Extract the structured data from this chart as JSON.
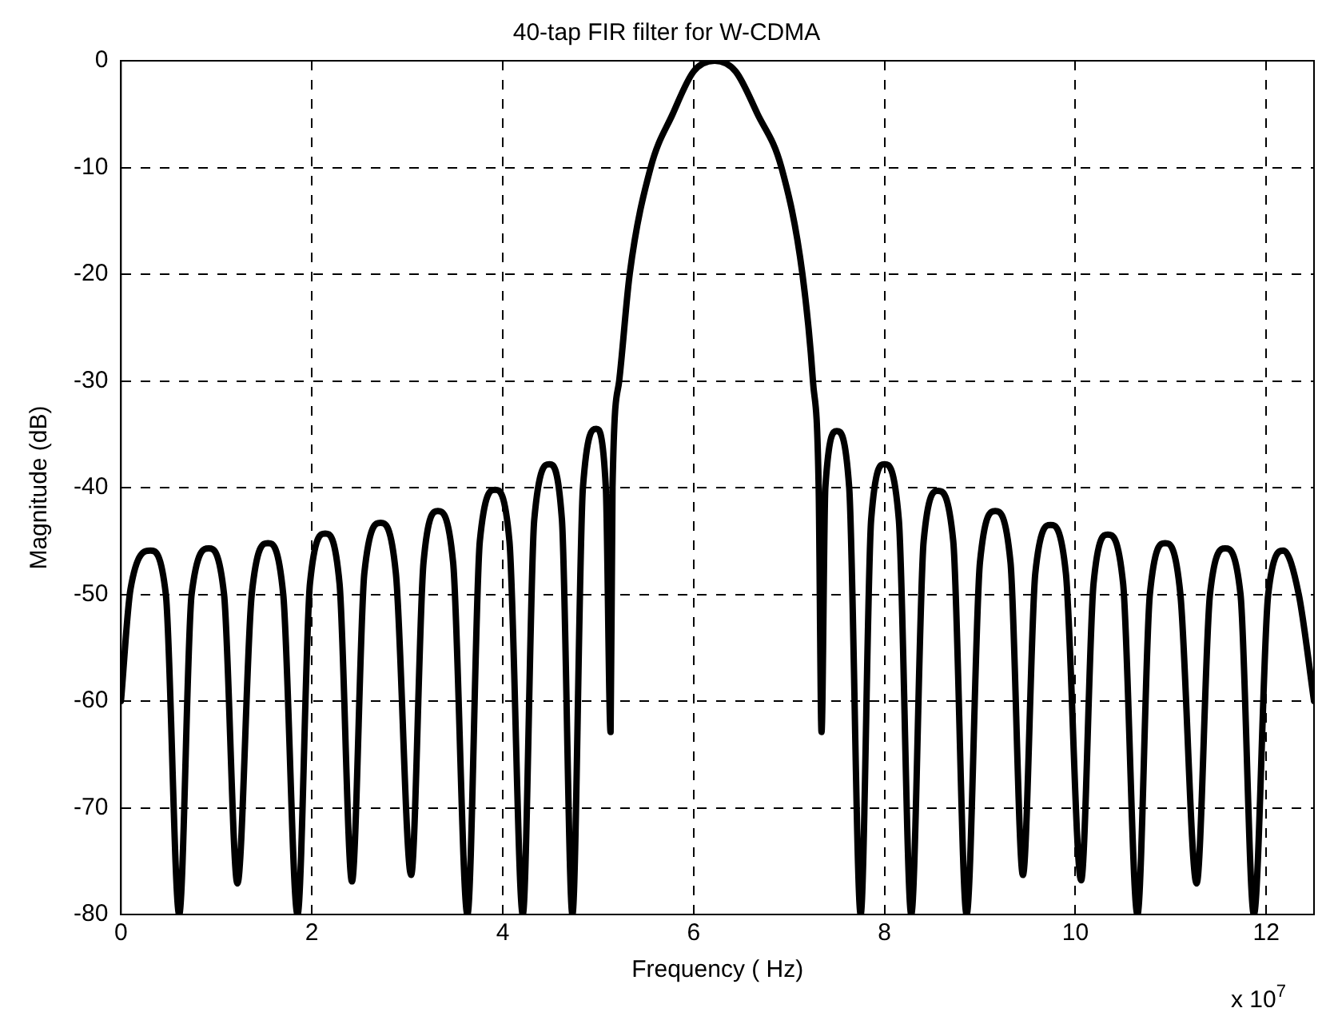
{
  "chart_data": {
    "type": "line",
    "title": "40-tap FIR filter for W-CDMA",
    "xlabel": "Frequency ( Hz)",
    "ylabel": "Magnitude (dB)",
    "annotations": [
      "x 10$^{7}$"
    ],
    "x": [
      0,
      0.1,
      0.31,
      0.47,
      0.61,
      0.74,
      0.92,
      1.08,
      1.22,
      1.37,
      1.54,
      1.7,
      1.85,
      1.98,
      2.14,
      2.29,
      2.42,
      2.55,
      2.72,
      2.88,
      3.04,
      3.17,
      3.32,
      3.48,
      3.63,
      3.76,
      3.92,
      4.07,
      4.21,
      4.33,
      4.49,
      4.62,
      4.73,
      4.84,
      4.98,
      5.08,
      5.13,
      5.15,
      5.22,
      5.33,
      5.55,
      5.78,
      6.0,
      6.22,
      6.44,
      6.67,
      6.92,
      7.14,
      7.25,
      7.31,
      7.34,
      7.38,
      7.5,
      7.63,
      7.75,
      7.86,
      8.0,
      8.15,
      8.28,
      8.41,
      8.56,
      8.72,
      8.86,
      9.0,
      9.16,
      9.32,
      9.45,
      9.58,
      9.74,
      9.9,
      10.06,
      10.19,
      10.34,
      10.5,
      10.65,
      10.78,
      10.94,
      11.1,
      11.27,
      11.41,
      11.57,
      11.73,
      11.87,
      12.02,
      12.18,
      12.34,
      12.5
    ],
    "series": [
      {
        "color": "#000000",
        "values": [
          -60,
          -49.5,
          -45.9,
          -50,
          -80,
          -50,
          -45.7,
          -50,
          -77.1,
          -50,
          -45.2,
          -50,
          -80,
          -49,
          -44.3,
          -49,
          -76.9,
          -48,
          -43.3,
          -48,
          -76.3,
          -47,
          -42.2,
          -47,
          -80,
          -45,
          -40.2,
          -45,
          -80,
          -43,
          -37.8,
          -43,
          -80,
          -40,
          -34.5,
          -40,
          -62.9,
          -40,
          -30,
          -20,
          -10,
          -5,
          -1,
          0,
          -1,
          -5,
          -10,
          -20,
          -30,
          -40,
          -62.9,
          -40,
          -34.7,
          -40,
          -80,
          -43,
          -37.8,
          -43,
          -80,
          -45,
          -40.3,
          -45,
          -80,
          -47,
          -42.2,
          -47,
          -76.3,
          -48,
          -43.5,
          -48,
          -76.8,
          -49,
          -44.4,
          -49,
          -80,
          -50,
          -45.2,
          -50,
          -77.1,
          -50,
          -45.7,
          -50,
          -80,
          -50,
          -45.9,
          -50,
          -60
        ]
      }
    ],
    "xlim": [
      0,
      12.5
    ],
    "xticks": [
      0,
      2,
      4,
      6,
      8,
      10,
      12
    ],
    "ylim": [
      -80,
      0
    ],
    "yticks": [
      -80,
      -70,
      -60,
      -50,
      -40,
      -30,
      -20,
      -10,
      0
    ],
    "grid": true,
    "legend": false,
    "marker": "none",
    "line_style": "solid"
  }
}
